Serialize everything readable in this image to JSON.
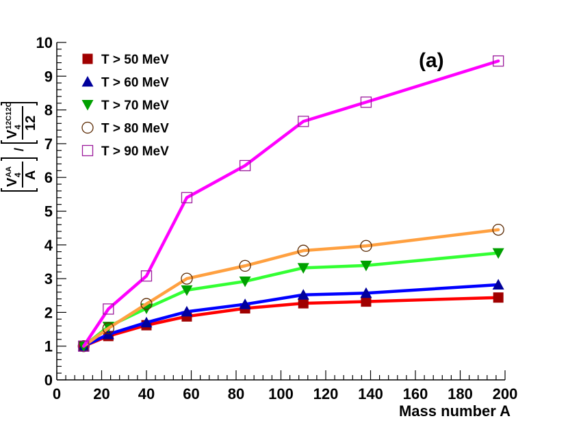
{
  "chart_data": {
    "type": "line",
    "title": "",
    "panel_label": "(a)",
    "xlabel": "Mass number A",
    "ylabel": {
      "left_numerator": "V",
      "left_numerator_sub": "4",
      "left_numerator_sup": "AA",
      "left_denominator": "A",
      "separator": "/",
      "right_numerator": "V",
      "right_numerator_sub": "4",
      "right_numerator_sup": "12C12C",
      "right_denominator": "12"
    },
    "xlim": [
      0,
      200
    ],
    "ylim": [
      0,
      10
    ],
    "x_ticks": [
      0,
      20,
      40,
      60,
      80,
      100,
      120,
      140,
      160,
      180,
      200
    ],
    "y_ticks": [
      0,
      1,
      2,
      3,
      4,
      5,
      6,
      7,
      8,
      9,
      10
    ],
    "x": [
      12,
      23,
      40,
      58,
      84,
      110,
      138,
      197
    ],
    "legend_position": "top-left",
    "series": [
      {
        "name": "T > 50 MeV",
        "marker": "square-filled",
        "marker_color": "#a00000",
        "line_color": "#ff0000",
        "values": [
          1.0,
          1.3,
          1.62,
          1.88,
          2.12,
          2.27,
          2.32,
          2.44
        ]
      },
      {
        "name": "T > 60 MeV",
        "marker": "triangle-up-filled",
        "marker_color": "#00009c",
        "line_color": "#0000ff",
        "values": [
          1.0,
          1.35,
          1.7,
          2.02,
          2.24,
          2.52,
          2.57,
          2.82
        ]
      },
      {
        "name": "T > 70 MeV",
        "marker": "triangle-down-filled",
        "marker_color": "#00a000",
        "line_color": "#33ff33",
        "values": [
          1.0,
          1.58,
          2.12,
          2.66,
          2.92,
          3.32,
          3.39,
          3.76
        ]
      },
      {
        "name": "T > 80 MeV",
        "marker": "circle-open",
        "marker_color": "#5a2800",
        "line_color": "#ffa040",
        "values": [
          1.0,
          1.53,
          2.25,
          3.0,
          3.38,
          3.83,
          3.97,
          4.45
        ]
      },
      {
        "name": "T > 90 MeV",
        "marker": "square-open",
        "marker_color": "#9b1a9b",
        "line_color": "#ff00ff",
        "values": [
          1.0,
          2.1,
          3.08,
          5.4,
          6.35,
          7.66,
          8.23,
          9.45
        ]
      }
    ]
  }
}
